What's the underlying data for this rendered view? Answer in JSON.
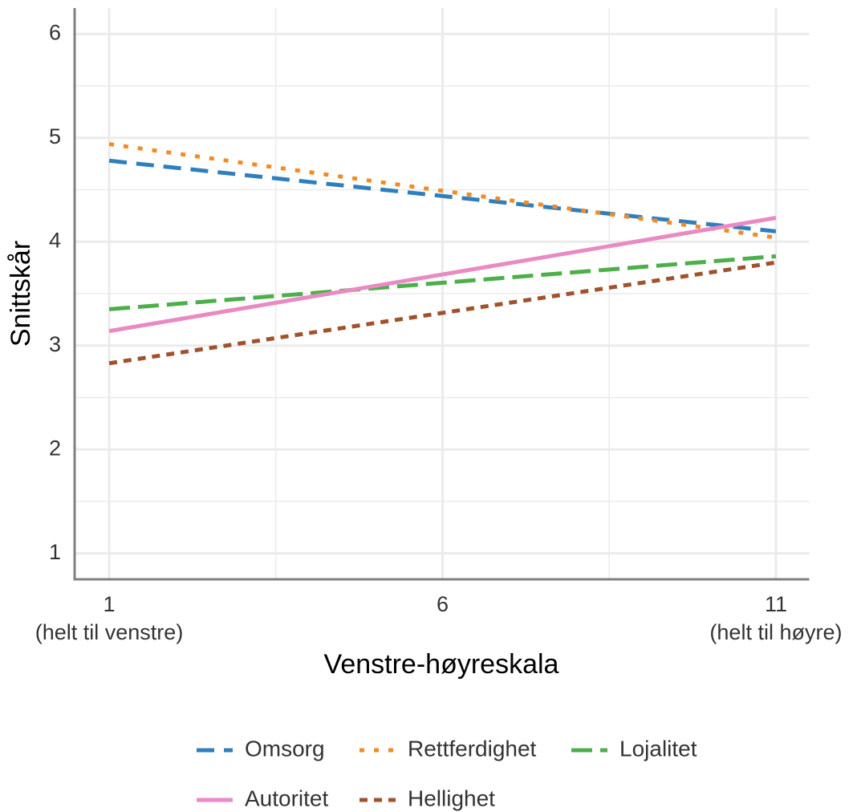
{
  "chart_data": {
    "type": "line",
    "xlabel": "Venstre-høyreskala",
    "ylabel": "Snittskår",
    "x": [
      1,
      11
    ],
    "series": [
      {
        "name": "Omsorg",
        "color": "#2f7fbc",
        "dash": "dashed",
        "values": [
          4.78,
          4.1
        ]
      },
      {
        "name": "Rettferdighet",
        "color": "#f28a26",
        "dash": "dotted",
        "values": [
          4.94,
          4.04
        ]
      },
      {
        "name": "Lojalitet",
        "color": "#4daf4a",
        "dash": "longdash",
        "values": [
          3.35,
          3.86
        ]
      },
      {
        "name": "Autoritet",
        "color": "#e98ac2",
        "dash": "solid",
        "values": [
          3.14,
          4.23
        ]
      },
      {
        "name": "Hellighet",
        "color": "#a0522d",
        "dash": "dotdash",
        "values": [
          2.83,
          3.8
        ]
      }
    ],
    "xlim": [
      0.5,
      11.5
    ],
    "ylim": [
      0.75,
      6.25
    ],
    "xticks": [
      1,
      6,
      11
    ],
    "yticks": [
      1,
      2,
      3,
      4,
      5,
      6
    ],
    "minor_xticks": [
      3.5,
      8.5
    ],
    "minor_yticks": [
      1.5,
      2.5,
      3.5,
      4.5,
      5.5
    ],
    "xtick_annotations": [
      {
        "x": 1,
        "text": "(helt til venstre)"
      },
      {
        "x": 11,
        "text": "(helt til høyre)"
      }
    ],
    "grid": true,
    "legend": "bottom"
  }
}
